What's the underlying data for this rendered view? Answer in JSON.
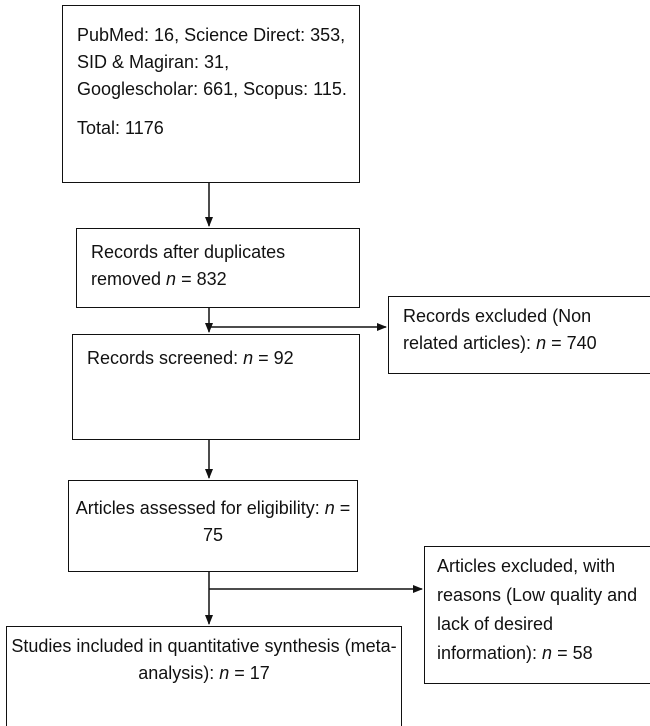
{
  "boxes": {
    "identification": {
      "text": "PubMed: 16, Science Direct: 353, SID & Magiran: 31, Googlescholar: 661, Scopus: 115.",
      "total": "Total: 1176"
    },
    "duplicates_removed": {
      "prefix": "Records after duplicates removed ",
      "n_label": "n",
      "suffix": " = 832"
    },
    "excluded_nonrelated": {
      "prefix": "Records excluded (Non related articles): ",
      "n_label": "n",
      "suffix": " = 740"
    },
    "screened": {
      "prefix": "Records screened: ",
      "n_label": "n",
      "suffix": " = 92"
    },
    "eligibility": {
      "prefix": "Articles assessed for eligibility: ",
      "n_label": "n",
      "suffix": " = 75"
    },
    "excluded_reasons": {
      "prefix": "Articles excluded, with reasons (Low quality and lack of desired information): ",
      "n_label": "n",
      "suffix": " = 58"
    },
    "included": {
      "prefix": "Studies included in quantitative synthesis (meta-analysis): ",
      "n_label": "n",
      "suffix": " = 17"
    }
  }
}
